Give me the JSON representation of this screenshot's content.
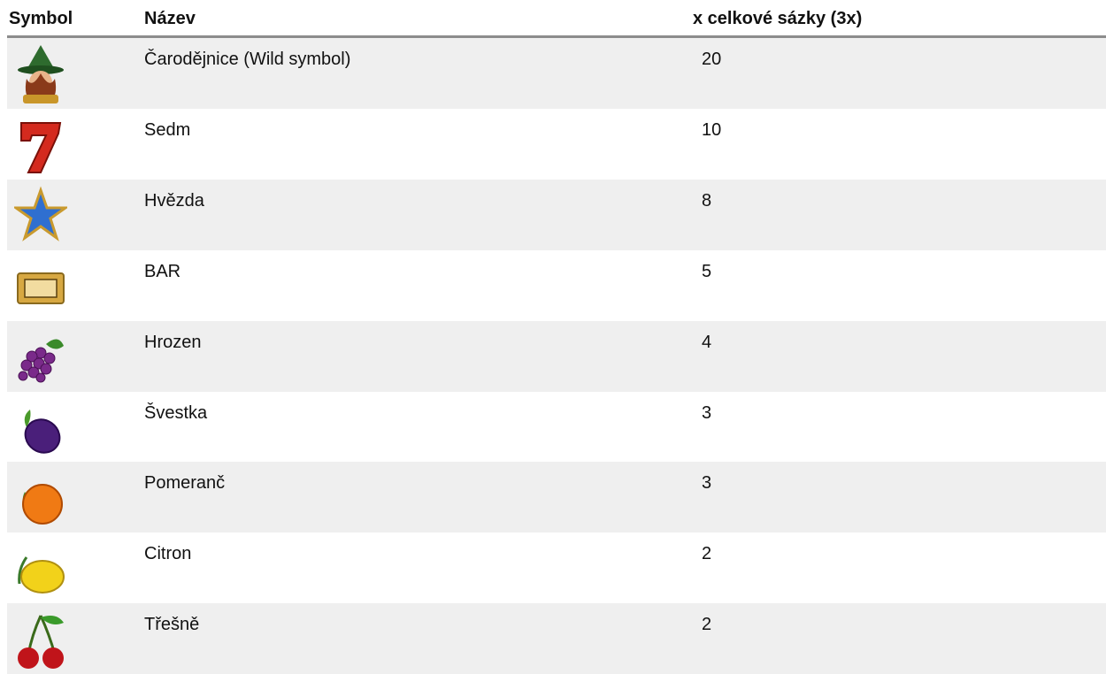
{
  "table": {
    "header": [
      "Symbol",
      "Název",
      "x celkové sázky (3x)"
    ],
    "rows": [
      {
        "name": "Čarodějnice (Wild symbol)",
        "multiplier": 20
      },
      {
        "name": "Sedm",
        "multiplier": 10
      },
      {
        "name": "Hvězda",
        "multiplier": 8
      },
      {
        "name": "BAR",
        "multiplier": 5
      },
      {
        "name": "Hrozen",
        "multiplier": 4
      },
      {
        "name": "Švestka",
        "multiplier": 3
      },
      {
        "name": "Pomeranč",
        "multiplier": 3
      },
      {
        "name": "Citron",
        "multiplier": 2
      },
      {
        "name": "Třešně",
        "multiplier": 2
      }
    ]
  }
}
